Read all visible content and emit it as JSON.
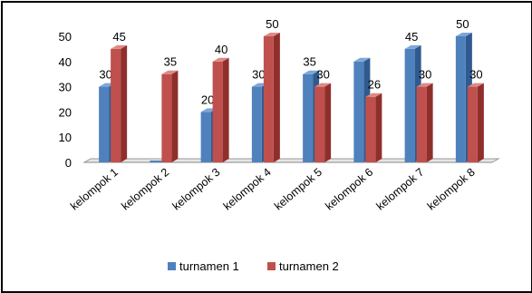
{
  "chart_data": {
    "type": "bar",
    "categories": [
      "kelompok 1",
      "kelompok 2",
      "kelompok 3",
      "kelompok 4",
      "kelompok 5",
      "kelompok 6",
      "kelompok 7",
      "kelompok 8"
    ],
    "series": [
      {
        "name": "turnamen 1",
        "color": "#4f81bd",
        "side": "#2f5a8f",
        "top": "#7ea6d8",
        "values": [
          30,
          0,
          20,
          30,
          35,
          40,
          45,
          50
        ]
      },
      {
        "name": "turnamen 2",
        "color": "#c0504d",
        "side": "#8f2f2c",
        "top": "#dc8a87",
        "values": [
          45,
          35,
          40,
          50,
          30,
          26,
          30,
          30
        ]
      }
    ],
    "data_labels": [
      [
        "30",
        "",
        "20",
        "30",
        "35",
        "",
        "45",
        "50"
      ],
      [
        "45",
        "35",
        "40",
        "50",
        "30",
        "26",
        "30",
        "30"
      ]
    ],
    "yticks": [
      0,
      10,
      20,
      30,
      40,
      50
    ],
    "ylim": [
      0,
      50
    ],
    "grid": false,
    "legend": "bottom"
  }
}
